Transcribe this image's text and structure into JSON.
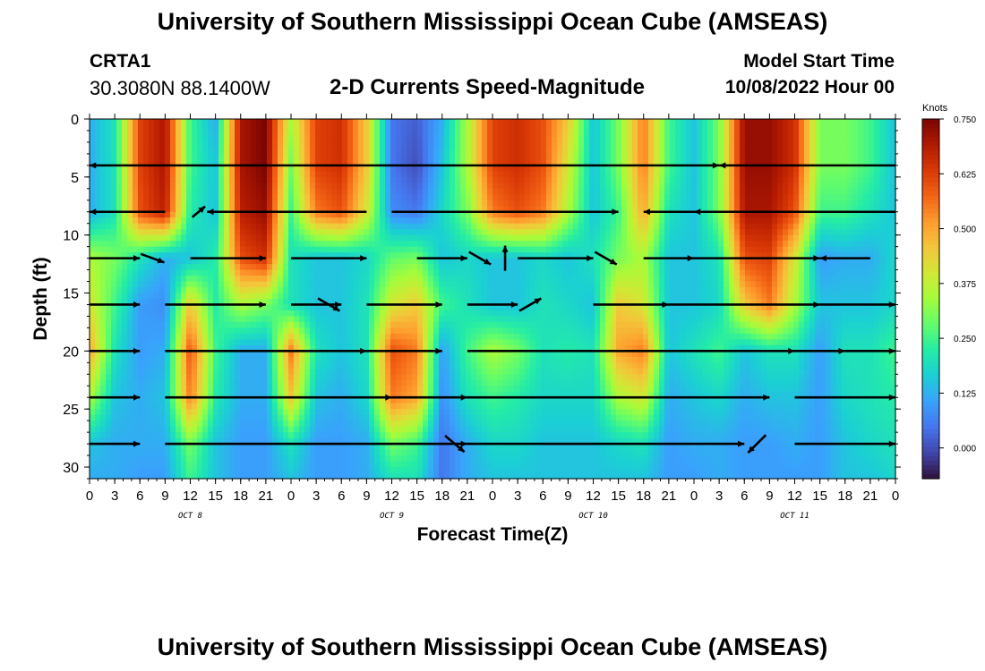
{
  "header": {
    "title": "University of Southern Mississippi Ocean Cube (AMSEAS)",
    "station": "CRTA1",
    "coords": "30.3080N  88.1400W",
    "subtitle": "2-D Currents Speed-Magnitude",
    "model_start_label": "Model Start Time",
    "model_start_value": "10/08/2022 Hour 00"
  },
  "footer": {
    "title": "University of Southern Mississippi Ocean Cube (AMSEAS)"
  },
  "colors": {
    "palette": [
      "#30123b",
      "#4145ab",
      "#4675ed",
      "#39a2fc",
      "#1bcfd4",
      "#24eca6",
      "#61fc6c",
      "#a4fc3b",
      "#d1e834",
      "#f3c63a",
      "#fe9b2d",
      "#f36315",
      "#d93806",
      "#b11901",
      "#7a0403"
    ]
  },
  "chart_data": {
    "type": "heatmap",
    "title": "2-D Currents Speed-Magnitude",
    "xlabel": "Forecast Time(Z)",
    "ylabel": "Depth (ft)",
    "x_ticks": [
      "0",
      "3",
      "6",
      "9",
      "12",
      "15",
      "18",
      "21",
      "0",
      "3",
      "6",
      "9",
      "12",
      "15",
      "18",
      "21",
      "0",
      "3",
      "6",
      "9",
      "12",
      "15",
      "18",
      "21",
      "0",
      "3",
      "6",
      "9",
      "12",
      "15",
      "18",
      "21",
      "0"
    ],
    "day_labels": [
      "OCT 8",
      "OCT 9",
      "OCT 10",
      "OCT 11"
    ],
    "xlim_hours": [
      0,
      96
    ],
    "y_ticks": [
      0,
      5,
      10,
      15,
      20,
      25,
      30
    ],
    "ylim_ft": [
      0,
      31
    ],
    "colorbar": {
      "units": "Knots",
      "ticks": [
        "0.750",
        "0.625",
        "0.500",
        "0.375",
        "0.250",
        "0.125",
        "0.000"
      ],
      "range": [
        -0.07,
        0.75
      ]
    },
    "depths_ft": [
      0,
      4,
      8,
      12,
      16,
      20,
      24,
      28,
      31
    ],
    "hours": [
      0,
      3,
      6,
      9,
      12,
      15,
      18,
      21,
      24,
      27,
      30,
      33,
      36,
      39,
      42,
      45,
      48,
      51,
      54,
      57,
      60,
      63,
      66,
      69,
      72,
      75,
      78,
      81,
      84,
      87,
      90,
      93,
      96
    ],
    "speed_knots": [
      [
        0.12,
        0.2,
        0.62,
        0.7,
        0.25,
        0.12,
        0.7,
        0.75,
        0.35,
        0.62,
        0.65,
        0.45,
        0.05,
        0.02,
        0.12,
        0.35,
        0.62,
        0.65,
        0.6,
        0.45,
        0.15,
        0.3,
        0.55,
        0.25,
        0.15,
        0.3,
        0.72,
        0.72,
        0.65,
        0.3,
        0.3,
        0.25,
        0.15
      ],
      [
        0.12,
        0.2,
        0.62,
        0.7,
        0.25,
        0.15,
        0.7,
        0.75,
        0.3,
        0.62,
        0.65,
        0.45,
        0.05,
        0.0,
        0.15,
        0.35,
        0.62,
        0.65,
        0.6,
        0.4,
        0.15,
        0.3,
        0.55,
        0.25,
        0.15,
        0.3,
        0.72,
        0.72,
        0.65,
        0.3,
        0.3,
        0.25,
        0.15
      ],
      [
        0.12,
        0.2,
        0.6,
        0.68,
        0.22,
        0.15,
        0.68,
        0.72,
        0.25,
        0.55,
        0.6,
        0.4,
        0.08,
        0.05,
        0.18,
        0.3,
        0.55,
        0.6,
        0.55,
        0.35,
        0.15,
        0.25,
        0.5,
        0.2,
        0.15,
        0.3,
        0.7,
        0.7,
        0.6,
        0.25,
        0.25,
        0.2,
        0.15
      ],
      [
        0.35,
        0.3,
        0.2,
        0.12,
        0.15,
        0.22,
        0.6,
        0.65,
        0.2,
        0.15,
        0.15,
        0.18,
        0.28,
        0.3,
        0.15,
        0.18,
        0.15,
        0.15,
        0.18,
        0.15,
        0.2,
        0.3,
        0.35,
        0.15,
        0.15,
        0.2,
        0.6,
        0.62,
        0.4,
        0.1,
        0.12,
        0.12,
        0.18
      ],
      [
        0.4,
        0.25,
        0.1,
        0.08,
        0.45,
        0.22,
        0.35,
        0.3,
        0.2,
        0.15,
        0.15,
        0.2,
        0.4,
        0.45,
        0.25,
        0.2,
        0.15,
        0.15,
        0.2,
        0.18,
        0.15,
        0.45,
        0.4,
        0.15,
        0.15,
        0.18,
        0.45,
        0.55,
        0.35,
        0.15,
        0.15,
        0.15,
        0.18
      ],
      [
        0.5,
        0.2,
        0.1,
        0.12,
        0.6,
        0.25,
        0.12,
        0.12,
        0.55,
        0.2,
        0.15,
        0.2,
        0.6,
        0.55,
        0.1,
        0.25,
        0.35,
        0.3,
        0.2,
        0.22,
        0.2,
        0.5,
        0.55,
        0.15,
        0.2,
        0.25,
        0.15,
        0.2,
        0.2,
        0.1,
        0.2,
        0.2,
        0.25
      ],
      [
        0.35,
        0.15,
        0.12,
        0.15,
        0.55,
        0.22,
        0.12,
        0.12,
        0.45,
        0.15,
        0.12,
        0.18,
        0.55,
        0.5,
        0.08,
        0.2,
        0.25,
        0.22,
        0.18,
        0.18,
        0.18,
        0.35,
        0.4,
        0.12,
        0.15,
        0.18,
        0.12,
        0.15,
        0.15,
        0.1,
        0.18,
        0.2,
        0.22
      ],
      [
        0.15,
        0.12,
        0.12,
        0.12,
        0.3,
        0.15,
        0.1,
        0.1,
        0.2,
        0.1,
        0.1,
        0.12,
        0.3,
        0.25,
        0.05,
        0.12,
        0.18,
        0.18,
        0.15,
        0.15,
        0.15,
        0.18,
        0.2,
        0.1,
        0.12,
        0.12,
        0.1,
        0.1,
        0.12,
        0.1,
        0.15,
        0.18,
        0.2
      ],
      [
        0.12,
        0.12,
        0.1,
        0.1,
        0.25,
        0.15,
        0.1,
        0.1,
        0.15,
        0.1,
        0.1,
        0.12,
        0.2,
        0.2,
        0.05,
        0.12,
        0.15,
        0.15,
        0.15,
        0.15,
        0.15,
        0.15,
        0.15,
        0.1,
        0.1,
        0.12,
        0.1,
        0.1,
        0.1,
        0.1,
        0.15,
        0.15,
        0.18
      ]
    ],
    "vectors_note": "current direction arrows drawn at depths 4,8,12,16,20,24,28 ft",
    "vectors": [
      {
        "depth": 4,
        "segments": [
          [
            0,
            63,
            180
          ],
          [
            63,
            75,
            0
          ],
          [
            75,
            96,
            180
          ]
        ]
      },
      {
        "depth": 8,
        "segments": [
          [
            0,
            9,
            180
          ],
          [
            12,
            14,
            40
          ],
          [
            14,
            33,
            180
          ],
          [
            36,
            63,
            0
          ],
          [
            66,
            72,
            180
          ],
          [
            72,
            96,
            180
          ]
        ]
      },
      {
        "depth": 12,
        "segments": [
          [
            0,
            6,
            0
          ],
          [
            6,
            9,
            -20
          ],
          [
            12,
            21,
            0
          ],
          [
            24,
            33,
            0
          ],
          [
            39,
            45,
            0
          ],
          [
            45,
            48,
            -30
          ],
          [
            48,
            51,
            90
          ],
          [
            51,
            60,
            0
          ],
          [
            60,
            63,
            -30
          ],
          [
            66,
            72,
            0
          ],
          [
            72,
            87,
            0
          ],
          [
            87,
            93,
            180
          ]
        ]
      },
      {
        "depth": 16,
        "segments": [
          [
            0,
            6,
            0
          ],
          [
            9,
            21,
            0
          ],
          [
            24,
            30,
            0
          ],
          [
            27,
            30,
            -30
          ],
          [
            33,
            42,
            0
          ],
          [
            45,
            51,
            0
          ],
          [
            51,
            54,
            30
          ],
          [
            60,
            69,
            0
          ],
          [
            69,
            87,
            0
          ],
          [
            87,
            96,
            0
          ]
        ]
      },
      {
        "depth": 20,
        "segments": [
          [
            0,
            6,
            0
          ],
          [
            9,
            33,
            0
          ],
          [
            33,
            42,
            0
          ],
          [
            45,
            84,
            0
          ],
          [
            84,
            90,
            0
          ],
          [
            90,
            96,
            0
          ]
        ]
      },
      {
        "depth": 24,
        "segments": [
          [
            0,
            6,
            0
          ],
          [
            9,
            36,
            0
          ],
          [
            36,
            45,
            0
          ],
          [
            45,
            81,
            0
          ],
          [
            84,
            96,
            0
          ]
        ]
      },
      {
        "depth": 28,
        "segments": [
          [
            0,
            6,
            0
          ],
          [
            9,
            45,
            0
          ],
          [
            42,
            45,
            -40
          ],
          [
            45,
            78,
            0
          ],
          [
            78,
            81,
            225
          ],
          [
            84,
            96,
            0
          ]
        ]
      }
    ]
  }
}
